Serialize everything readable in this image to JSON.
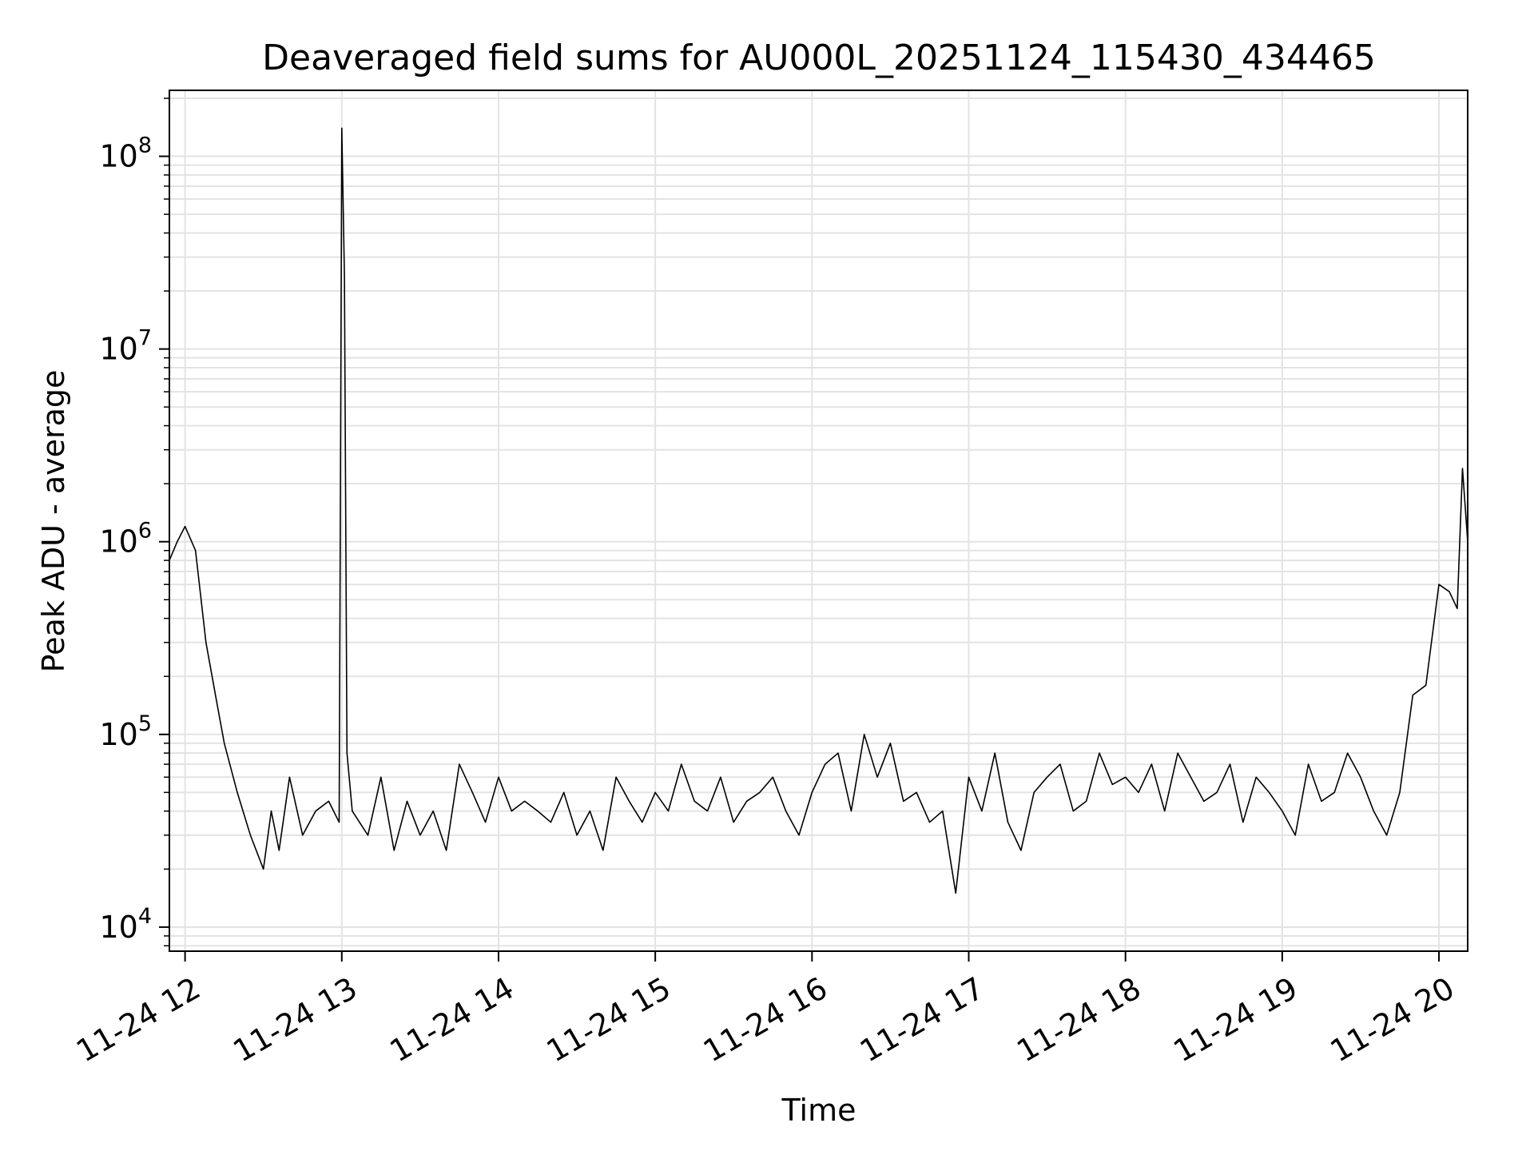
{
  "chart_data": {
    "type": "line",
    "title": "Deaveraged field sums for AU000L_20251124_115430_434465",
    "xlabel": "Time",
    "ylabel": "Peak ADU - average",
    "y_scale": "log",
    "ylim": [
      7500,
      220000000
    ],
    "xlim": [
      "2025-11-24 11:54",
      "2025-11-24 20:11"
    ],
    "grid": true,
    "line_color": "#000000",
    "grid_color": "#e3e3e3",
    "x_ticks": [
      {
        "label": "11-24 12",
        "value": "2025-11-24 12:00"
      },
      {
        "label": "11-24 13",
        "value": "2025-11-24 13:00"
      },
      {
        "label": "11-24 14",
        "value": "2025-11-24 14:00"
      },
      {
        "label": "11-24 15",
        "value": "2025-11-24 15:00"
      },
      {
        "label": "11-24 16",
        "value": "2025-11-24 16:00"
      },
      {
        "label": "11-24 17",
        "value": "2025-11-24 17:00"
      },
      {
        "label": "11-24 18",
        "value": "2025-11-24 18:00"
      },
      {
        "label": "11-24 19",
        "value": "2025-11-24 19:00"
      },
      {
        "label": "11-24 20",
        "value": "2025-11-24 20:00"
      }
    ],
    "y_ticks": [
      {
        "base": "10",
        "exp": "4",
        "value": 10000
      },
      {
        "base": "10",
        "exp": "5",
        "value": 100000
      },
      {
        "base": "10",
        "exp": "6",
        "value": 1000000
      },
      {
        "base": "10",
        "exp": "7",
        "value": 10000000
      },
      {
        "base": "10",
        "exp": "8",
        "value": 100000000
      }
    ],
    "series": [
      {
        "x": [
          "2025-11-24 11:54",
          "2025-11-24 11:57",
          "2025-11-24 12:00",
          "2025-11-24 12:04",
          "2025-11-24 12:08",
          "2025-11-24 12:12",
          "2025-11-24 12:15",
          "2025-11-24 12:20",
          "2025-11-24 12:25",
          "2025-11-24 12:30",
          "2025-11-24 12:33",
          "2025-11-24 12:36",
          "2025-11-24 12:40",
          "2025-11-24 12:45",
          "2025-11-24 12:50",
          "2025-11-24 12:55",
          "2025-11-24 12:59",
          "2025-11-24 13:00",
          "2025-11-24 13:01",
          "2025-11-24 13:02",
          "2025-11-24 13:04",
          "2025-11-24 13:10",
          "2025-11-24 13:15",
          "2025-11-24 13:20",
          "2025-11-24 13:25",
          "2025-11-24 13:30",
          "2025-11-24 13:35",
          "2025-11-24 13:40",
          "2025-11-24 13:45",
          "2025-11-24 13:50",
          "2025-11-24 13:55",
          "2025-11-24 14:00",
          "2025-11-24 14:05",
          "2025-11-24 14:10",
          "2025-11-24 14:15",
          "2025-11-24 14:20",
          "2025-11-24 14:25",
          "2025-11-24 14:30",
          "2025-11-24 14:35",
          "2025-11-24 14:40",
          "2025-11-24 14:45",
          "2025-11-24 14:50",
          "2025-11-24 14:55",
          "2025-11-24 15:00",
          "2025-11-24 15:05",
          "2025-11-24 15:10",
          "2025-11-24 15:15",
          "2025-11-24 15:20",
          "2025-11-24 15:25",
          "2025-11-24 15:30",
          "2025-11-24 15:35",
          "2025-11-24 15:40",
          "2025-11-24 15:45",
          "2025-11-24 15:50",
          "2025-11-24 15:55",
          "2025-11-24 16:00",
          "2025-11-24 16:05",
          "2025-11-24 16:10",
          "2025-11-24 16:15",
          "2025-11-24 16:20",
          "2025-11-24 16:25",
          "2025-11-24 16:30",
          "2025-11-24 16:35",
          "2025-11-24 16:40",
          "2025-11-24 16:45",
          "2025-11-24 16:50",
          "2025-11-24 16:55",
          "2025-11-24 17:00",
          "2025-11-24 17:05",
          "2025-11-24 17:10",
          "2025-11-24 17:15",
          "2025-11-24 17:20",
          "2025-11-24 17:25",
          "2025-11-24 17:30",
          "2025-11-24 17:35",
          "2025-11-24 17:40",
          "2025-11-24 17:45",
          "2025-11-24 17:50",
          "2025-11-24 17:55",
          "2025-11-24 18:00",
          "2025-11-24 18:05",
          "2025-11-24 18:10",
          "2025-11-24 18:15",
          "2025-11-24 18:20",
          "2025-11-24 18:25",
          "2025-11-24 18:30",
          "2025-11-24 18:35",
          "2025-11-24 18:40",
          "2025-11-24 18:45",
          "2025-11-24 18:50",
          "2025-11-24 18:55",
          "2025-11-24 19:00",
          "2025-11-24 19:05",
          "2025-11-24 19:10",
          "2025-11-24 19:15",
          "2025-11-24 19:20",
          "2025-11-24 19:25",
          "2025-11-24 19:30",
          "2025-11-24 19:35",
          "2025-11-24 19:40",
          "2025-11-24 19:45",
          "2025-11-24 19:50",
          "2025-11-24 19:55",
          "2025-11-24 20:00",
          "2025-11-24 20:04",
          "2025-11-24 20:07",
          "2025-11-24 20:09",
          "2025-11-24 20:11"
        ],
        "y": [
          800000,
          1000000,
          1200000,
          900000,
          300000,
          150000,
          90000,
          50000,
          30000,
          20000,
          40000,
          25000,
          60000,
          30000,
          40000,
          45000,
          35000,
          140000000,
          24000000,
          80000,
          40000,
          30000,
          60000,
          25000,
          45000,
          30000,
          40000,
          25000,
          70000,
          50000,
          35000,
          60000,
          40000,
          45000,
          40000,
          35000,
          50000,
          30000,
          40000,
          25000,
          60000,
          45000,
          35000,
          50000,
          40000,
          70000,
          45000,
          40000,
          60000,
          35000,
          45000,
          50000,
          60000,
          40000,
          30000,
          50000,
          70000,
          80000,
          40000,
          100000,
          60000,
          90000,
          45000,
          50000,
          35000,
          40000,
          15000,
          60000,
          40000,
          80000,
          35000,
          25000,
          50000,
          60000,
          70000,
          40000,
          45000,
          80000,
          55000,
          60000,
          50000,
          70000,
          40000,
          80000,
          60000,
          45000,
          50000,
          70000,
          35000,
          60000,
          50000,
          40000,
          30000,
          70000,
          45000,
          50000,
          80000,
          60000,
          40000,
          30000,
          50000,
          160000,
          180000,
          600000,
          550000,
          450000,
          2400000,
          1000000
        ]
      }
    ]
  }
}
